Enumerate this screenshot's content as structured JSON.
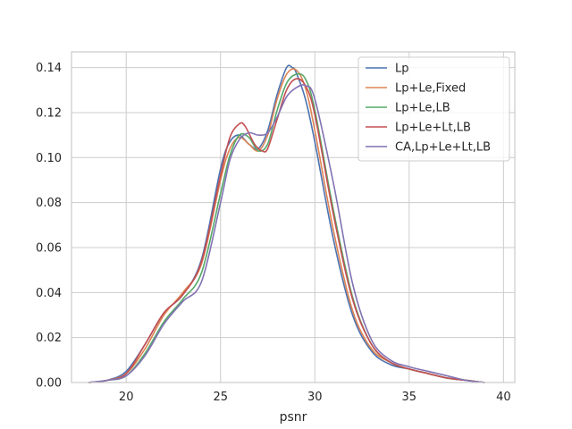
{
  "chart_data": {
    "type": "line",
    "title": "",
    "xlabel": "psnr",
    "ylabel": "",
    "xlim": [
      17.1,
      40.6
    ],
    "ylim": [
      0.0,
      0.147
    ],
    "grid": true,
    "legend_position": "top-right",
    "x_ticks": [
      20,
      25,
      30,
      35,
      40
    ],
    "x_tick_labels": [
      "20",
      "25",
      "30",
      "35",
      "40"
    ],
    "y_ticks": [
      0.0,
      0.02,
      0.04,
      0.06,
      0.08,
      0.1,
      0.12,
      0.14
    ],
    "y_tick_labels": [
      "0.00",
      "0.02",
      "0.04",
      "0.06",
      "0.08",
      "0.10",
      "0.12",
      "0.14"
    ],
    "series": [
      {
        "name": "Lp",
        "color": "#4c72b0",
        "points": [
          [
            18.0,
            0.0
          ],
          [
            19.0,
            0.001
          ],
          [
            20.0,
            0.005
          ],
          [
            21.0,
            0.017
          ],
          [
            22.0,
            0.031
          ],
          [
            23.0,
            0.039
          ],
          [
            24.0,
            0.055
          ],
          [
            25.0,
            0.095
          ],
          [
            25.5,
            0.107
          ],
          [
            26.0,
            0.11
          ],
          [
            26.5,
            0.106
          ],
          [
            27.0,
            0.104
          ],
          [
            27.5,
            0.112
          ],
          [
            28.0,
            0.128
          ],
          [
            28.5,
            0.14
          ],
          [
            28.8,
            0.14
          ],
          [
            29.0,
            0.138
          ],
          [
            29.5,
            0.126
          ],
          [
            30.0,
            0.107
          ],
          [
            31.0,
            0.063
          ],
          [
            32.0,
            0.03
          ],
          [
            33.0,
            0.014
          ],
          [
            34.0,
            0.008
          ],
          [
            35.0,
            0.006
          ],
          [
            36.0,
            0.004
          ],
          [
            37.0,
            0.002
          ],
          [
            38.0,
            0.001
          ],
          [
            39.0,
            0.0
          ]
        ]
      },
      {
        "name": "Lp+Le,Fixed",
        "color": "#dd8452",
        "points": [
          [
            18.0,
            0.0
          ],
          [
            19.0,
            0.001
          ],
          [
            20.0,
            0.004
          ],
          [
            21.0,
            0.015
          ],
          [
            22.0,
            0.03
          ],
          [
            23.0,
            0.04
          ],
          [
            24.0,
            0.053
          ],
          [
            25.0,
            0.09
          ],
          [
            25.5,
            0.104
          ],
          [
            26.0,
            0.109
          ],
          [
            26.5,
            0.106
          ],
          [
            27.0,
            0.103
          ],
          [
            27.5,
            0.11
          ],
          [
            28.0,
            0.126
          ],
          [
            28.5,
            0.137
          ],
          [
            29.0,
            0.139
          ],
          [
            29.5,
            0.131
          ],
          [
            30.0,
            0.112
          ],
          [
            31.0,
            0.067
          ],
          [
            32.0,
            0.032
          ],
          [
            33.0,
            0.015
          ],
          [
            34.0,
            0.009
          ],
          [
            35.0,
            0.006
          ],
          [
            36.0,
            0.004
          ],
          [
            37.0,
            0.002
          ],
          [
            38.0,
            0.001
          ],
          [
            39.0,
            0.0
          ]
        ]
      },
      {
        "name": "Lp+Le,LB",
        "color": "#55a868",
        "points": [
          [
            18.0,
            0.0
          ],
          [
            19.0,
            0.001
          ],
          [
            20.0,
            0.003
          ],
          [
            21.0,
            0.013
          ],
          [
            22.0,
            0.027
          ],
          [
            23.0,
            0.037
          ],
          [
            24.0,
            0.049
          ],
          [
            25.0,
            0.084
          ],
          [
            25.5,
            0.101
          ],
          [
            26.0,
            0.11
          ],
          [
            26.5,
            0.109
          ],
          [
            27.0,
            0.103
          ],
          [
            27.5,
            0.106
          ],
          [
            28.0,
            0.121
          ],
          [
            28.5,
            0.133
          ],
          [
            29.0,
            0.137
          ],
          [
            29.5,
            0.135
          ],
          [
            30.0,
            0.121
          ],
          [
            31.0,
            0.076
          ],
          [
            32.0,
            0.038
          ],
          [
            33.0,
            0.017
          ],
          [
            34.0,
            0.009
          ],
          [
            35.0,
            0.006
          ],
          [
            36.0,
            0.004
          ],
          [
            37.0,
            0.002
          ],
          [
            38.0,
            0.001
          ],
          [
            39.0,
            0.0
          ]
        ]
      },
      {
        "name": "Lp+Le+Lt,LB",
        "color": "#c44e52",
        "points": [
          [
            18.0,
            0.0
          ],
          [
            19.0,
            0.001
          ],
          [
            20.0,
            0.004
          ],
          [
            21.0,
            0.017
          ],
          [
            22.0,
            0.031
          ],
          [
            23.0,
            0.039
          ],
          [
            24.0,
            0.054
          ],
          [
            25.0,
            0.092
          ],
          [
            25.5,
            0.109
          ],
          [
            26.0,
            0.115
          ],
          [
            26.3,
            0.114
          ],
          [
            26.8,
            0.106
          ],
          [
            27.2,
            0.103
          ],
          [
            27.5,
            0.104
          ],
          [
            28.0,
            0.117
          ],
          [
            28.5,
            0.13
          ],
          [
            29.0,
            0.135
          ],
          [
            29.5,
            0.132
          ],
          [
            30.0,
            0.119
          ],
          [
            31.0,
            0.074
          ],
          [
            32.0,
            0.037
          ],
          [
            33.0,
            0.017
          ],
          [
            34.0,
            0.009
          ],
          [
            35.0,
            0.006
          ],
          [
            36.0,
            0.004
          ],
          [
            37.0,
            0.002
          ],
          [
            38.0,
            0.001
          ],
          [
            39.0,
            0.0
          ]
        ]
      },
      {
        "name": "CA,Lp+Le+Lt,LB",
        "color": "#8172b3",
        "points": [
          [
            18.0,
            0.0
          ],
          [
            19.0,
            0.001
          ],
          [
            20.0,
            0.003
          ],
          [
            21.0,
            0.012
          ],
          [
            22.0,
            0.026
          ],
          [
            23.0,
            0.036
          ],
          [
            24.0,
            0.045
          ],
          [
            25.0,
            0.08
          ],
          [
            25.5,
            0.099
          ],
          [
            26.0,
            0.108
          ],
          [
            26.5,
            0.111
          ],
          [
            27.0,
            0.11
          ],
          [
            27.5,
            0.111
          ],
          [
            28.0,
            0.118
          ],
          [
            28.5,
            0.127
          ],
          [
            29.0,
            0.131
          ],
          [
            29.5,
            0.132
          ],
          [
            30.0,
            0.126
          ],
          [
            31.0,
            0.088
          ],
          [
            32.0,
            0.044
          ],
          [
            33.0,
            0.019
          ],
          [
            34.0,
            0.01
          ],
          [
            35.0,
            0.007
          ],
          [
            36.0,
            0.005
          ],
          [
            37.0,
            0.003
          ],
          [
            38.0,
            0.001
          ],
          [
            39.0,
            0.0
          ]
        ]
      }
    ]
  }
}
